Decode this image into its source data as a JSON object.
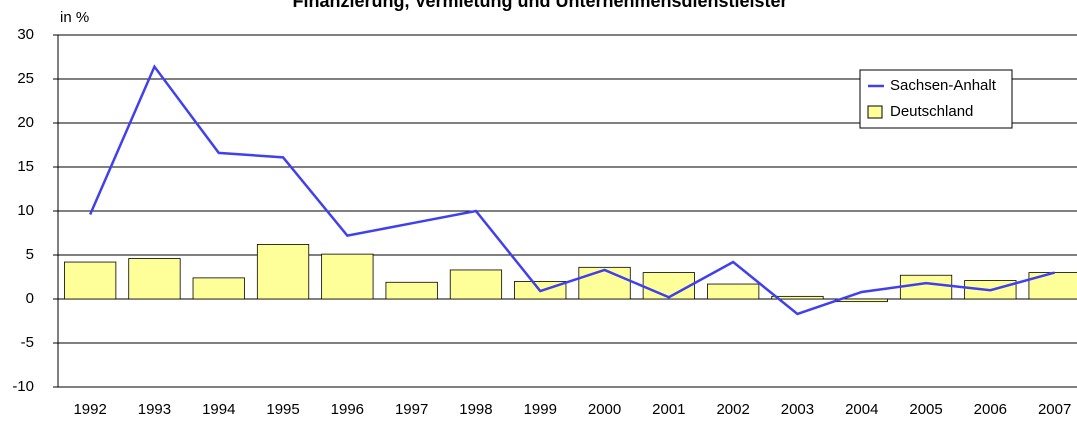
{
  "chart_data": {
    "type": "bar_line",
    "title": "Finanzierung, Vermietung und Unternehmensdienstleister",
    "y_label": "in %",
    "categories": [
      "1992",
      "1993",
      "1994",
      "1995",
      "1996",
      "1997",
      "1998",
      "1999",
      "2000",
      "2001",
      "2002",
      "2003",
      "2004",
      "2005",
      "2006",
      "2007"
    ],
    "series": [
      {
        "name": "Sachsen-Anhalt",
        "type": "line",
        "color": "#4040ee",
        "values": [
          9.6,
          26.4,
          16.6,
          16.1,
          7.2,
          8.6,
          10.0,
          0.9,
          3.3,
          0.2,
          4.2,
          -1.7,
          0.8,
          1.8,
          1.0,
          3.0
        ]
      },
      {
        "name": "Deutschland",
        "type": "bar",
        "color": "#ffff99",
        "values": [
          4.2,
          4.6,
          2.4,
          6.2,
          5.1,
          1.9,
          3.3,
          2.0,
          3.6,
          3.0,
          1.7,
          0.3,
          -0.3,
          2.7,
          2.1,
          3.0
        ]
      }
    ],
    "ylim": [
      -10,
      30
    ],
    "yticks": [
      -10,
      -5,
      0,
      5,
      10,
      15,
      20,
      25,
      30
    ],
    "grid": true,
    "legend": "upper right"
  }
}
